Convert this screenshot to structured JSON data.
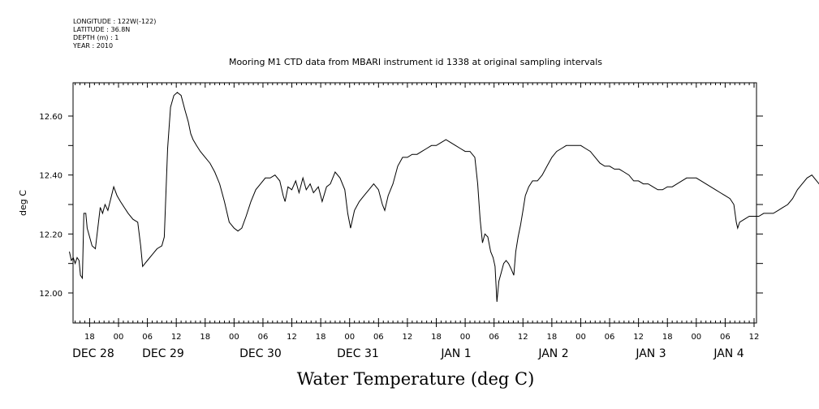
{
  "metadata": {
    "longitude": "LONGITUDE : 122W(-122)",
    "latitude": "LATITUDE : 36.8N",
    "depth": "DEPTH (m) : 1",
    "year": "YEAR : 2010"
  },
  "chart_data": {
    "type": "line",
    "title": "Mooring M1 CTD data from MBARI instrument id 1338 at original sampling intervals",
    "xlabel": "Water Temperature (deg C)",
    "ylabel": "deg C",
    "ylim": [
      11.9,
      12.71
    ],
    "xlim_hours": [
      -10.2,
      126.8
    ],
    "x_units": "hours since Dec 28 00:00, 2010-2011",
    "y_ticks": [
      {
        "value": 12.0,
        "label": "12.00"
      },
      {
        "value": 12.2,
        "label": "12.20"
      },
      {
        "value": 12.4,
        "label": "12.40"
      },
      {
        "value": 12.6,
        "label": "12.60"
      }
    ],
    "y_minor_ticks": [
      12.1,
      12.3,
      12.5
    ],
    "x_hour_ticks": [
      {
        "hour": -6,
        "label": "18"
      },
      {
        "hour": 0,
        "label": "00"
      },
      {
        "hour": 6,
        "label": "06"
      },
      {
        "hour": 12,
        "label": "12"
      },
      {
        "hour": 18,
        "label": "18"
      },
      {
        "hour": 24,
        "label": "00"
      },
      {
        "hour": 30,
        "label": "06"
      },
      {
        "hour": 36,
        "label": "12"
      },
      {
        "hour": 42,
        "label": "18"
      },
      {
        "hour": 48,
        "label": "00"
      },
      {
        "hour": 54,
        "label": "06"
      },
      {
        "hour": 60,
        "label": "12"
      },
      {
        "hour": 66,
        "label": "18"
      },
      {
        "hour": 72,
        "label": "00"
      },
      {
        "hour": 78,
        "label": "06"
      },
      {
        "hour": 84,
        "label": "12"
      },
      {
        "hour": 90,
        "label": "18"
      },
      {
        "hour": 96,
        "label": "00"
      },
      {
        "hour": 102,
        "label": "06"
      },
      {
        "hour": 108,
        "label": "12"
      },
      {
        "hour": 114,
        "label": "18"
      },
      {
        "hour": 120,
        "label": "00"
      },
      {
        "hour": 126,
        "label": "06"
      },
      {
        "hour": 132,
        "label": "12"
      }
    ],
    "x_day_labels": [
      {
        "hour": -7,
        "label": "DEC 28"
      },
      {
        "hour": 7,
        "label": "DEC 29"
      },
      {
        "hour": 31,
        "label": "DEC 30"
      },
      {
        "hour": 55,
        "label": "DEC 31"
      },
      {
        "hour": 79,
        "label": "JAN  1"
      },
      {
        "hour": 103,
        "label": "JAN  2"
      },
      {
        "hour": 127,
        "label": "JAN  3"
      },
      {
        "hour": 151,
        "label": "JAN  4"
      }
    ],
    "series": [
      {
        "values": [
          [
            -10.2,
            12.14
          ],
          [
            -9.8,
            12.11
          ],
          [
            -9.4,
            12.12
          ],
          [
            -9.0,
            12.1
          ],
          [
            -8.6,
            12.12
          ],
          [
            -8.2,
            12.11
          ],
          [
            -7.9,
            12.06
          ],
          [
            -7.5,
            12.05
          ],
          [
            -7.2,
            12.27
          ],
          [
            -6.8,
            12.27
          ],
          [
            -6.5,
            12.22
          ],
          [
            -6.0,
            12.19
          ],
          [
            -5.5,
            12.16
          ],
          [
            -4.8,
            12.15
          ],
          [
            -4.3,
            12.22
          ],
          [
            -3.8,
            12.29
          ],
          [
            -3.3,
            12.27
          ],
          [
            -2.8,
            12.3
          ],
          [
            -2.2,
            12.28
          ],
          [
            -1.6,
            12.32
          ],
          [
            -1.0,
            12.36
          ],
          [
            -0.3,
            12.33
          ],
          [
            0.4,
            12.31
          ],
          [
            1.2,
            12.29
          ],
          [
            2.0,
            12.27
          ],
          [
            3.0,
            12.25
          ],
          [
            4.0,
            12.24
          ],
          [
            4.6,
            12.16
          ],
          [
            5.0,
            12.09
          ],
          [
            5.5,
            12.1
          ],
          [
            6.0,
            12.11
          ],
          [
            7.0,
            12.13
          ],
          [
            8.0,
            12.15
          ],
          [
            9.0,
            12.16
          ],
          [
            9.5,
            12.19
          ],
          [
            10.2,
            12.49
          ],
          [
            10.8,
            12.63
          ],
          [
            11.5,
            12.67
          ],
          [
            12.2,
            12.68
          ],
          [
            13.0,
            12.67
          ],
          [
            13.8,
            12.62
          ],
          [
            14.5,
            12.58
          ],
          [
            15.0,
            12.54
          ],
          [
            15.5,
            12.52
          ],
          [
            16.2,
            12.5
          ],
          [
            17.0,
            12.48
          ],
          [
            18.0,
            12.46
          ],
          [
            19.0,
            12.44
          ],
          [
            20.0,
            12.41
          ],
          [
            21.0,
            12.37
          ],
          [
            22.0,
            12.31
          ],
          [
            23.0,
            12.24
          ],
          [
            24.0,
            12.22
          ],
          [
            24.8,
            12.21
          ],
          [
            25.6,
            12.22
          ],
          [
            26.5,
            12.26
          ],
          [
            27.5,
            12.31
          ],
          [
            28.5,
            12.35
          ],
          [
            29.5,
            12.37
          ],
          [
            30.5,
            12.39
          ],
          [
            31.5,
            12.39
          ],
          [
            32.5,
            12.4
          ],
          [
            33.5,
            12.38
          ],
          [
            34.2,
            12.33
          ],
          [
            34.6,
            12.31
          ],
          [
            35.2,
            12.36
          ],
          [
            36.0,
            12.35
          ],
          [
            36.8,
            12.38
          ],
          [
            37.5,
            12.34
          ],
          [
            38.3,
            12.39
          ],
          [
            39.0,
            12.35
          ],
          [
            39.8,
            12.37
          ],
          [
            40.5,
            12.34
          ],
          [
            41.5,
            12.36
          ],
          [
            42.3,
            12.31
          ],
          [
            43.2,
            12.36
          ],
          [
            44.0,
            12.37
          ],
          [
            45.0,
            12.41
          ],
          [
            46.0,
            12.39
          ],
          [
            47.0,
            12.35
          ],
          [
            47.6,
            12.27
          ],
          [
            48.2,
            12.22
          ],
          [
            49.0,
            12.28
          ],
          [
            50.0,
            12.31
          ],
          [
            51.0,
            12.33
          ],
          [
            52.0,
            12.35
          ],
          [
            53.0,
            12.37
          ],
          [
            54.0,
            12.35
          ],
          [
            54.8,
            12.3
          ],
          [
            55.3,
            12.28
          ],
          [
            56.0,
            12.33
          ],
          [
            57.0,
            12.37
          ],
          [
            58.0,
            12.43
          ],
          [
            59.0,
            12.46
          ],
          [
            60.0,
            12.46
          ],
          [
            61.0,
            12.47
          ],
          [
            62.0,
            12.47
          ],
          [
            63.0,
            12.48
          ],
          [
            64.0,
            12.49
          ],
          [
            65.0,
            12.5
          ],
          [
            66.0,
            12.5
          ],
          [
            67.0,
            12.51
          ],
          [
            68.0,
            12.52
          ],
          [
            69.0,
            12.51
          ],
          [
            70.0,
            12.5
          ],
          [
            71.0,
            12.49
          ],
          [
            72.0,
            12.48
          ],
          [
            73.0,
            12.48
          ],
          [
            74.0,
            12.46
          ],
          [
            74.6,
            12.37
          ],
          [
            75.1,
            12.25
          ],
          [
            75.6,
            12.17
          ],
          [
            76.1,
            12.2
          ],
          [
            76.7,
            12.19
          ],
          [
            77.3,
            12.14
          ],
          [
            77.8,
            12.12
          ],
          [
            78.2,
            12.09
          ],
          [
            78.6,
            11.97
          ],
          [
            79.0,
            12.04
          ],
          [
            79.5,
            12.07
          ],
          [
            80.0,
            12.1
          ],
          [
            80.5,
            12.11
          ],
          [
            81.0,
            12.1
          ],
          [
            81.6,
            12.08
          ],
          [
            82.1,
            12.06
          ],
          [
            82.5,
            12.14
          ],
          [
            83.0,
            12.19
          ],
          [
            83.5,
            12.23
          ],
          [
            84.0,
            12.28
          ],
          [
            84.5,
            12.33
          ],
          [
            85.2,
            12.36
          ],
          [
            86.0,
            12.38
          ],
          [
            87.0,
            12.38
          ],
          [
            88.0,
            12.4
          ],
          [
            89.0,
            12.43
          ],
          [
            90.0,
            12.46
          ],
          [
            91.0,
            12.48
          ],
          [
            92.0,
            12.49
          ],
          [
            93.0,
            12.5
          ],
          [
            94.0,
            12.5
          ],
          [
            95.0,
            12.5
          ],
          [
            96.0,
            12.5
          ],
          [
            97.0,
            12.49
          ],
          [
            98.0,
            12.48
          ],
          [
            99.0,
            12.46
          ],
          [
            100.0,
            12.44
          ],
          [
            101.0,
            12.43
          ],
          [
            102.0,
            12.43
          ],
          [
            103.0,
            12.42
          ],
          [
            104.0,
            12.42
          ],
          [
            105.0,
            12.41
          ],
          [
            106.0,
            12.4
          ],
          [
            107.0,
            12.38
          ],
          [
            108.0,
            12.38
          ],
          [
            109.0,
            12.37
          ],
          [
            110.0,
            12.37
          ],
          [
            111.0,
            12.36
          ],
          [
            112.0,
            12.35
          ],
          [
            113.0,
            12.35
          ],
          [
            114.0,
            12.36
          ],
          [
            115.0,
            12.36
          ],
          [
            116.0,
            12.37
          ],
          [
            117.0,
            12.38
          ],
          [
            118.0,
            12.39
          ],
          [
            119.0,
            12.39
          ],
          [
            120.0,
            12.39
          ],
          [
            121.0,
            12.38
          ],
          [
            122.0,
            12.37
          ],
          [
            123.0,
            12.36
          ],
          [
            124.0,
            12.35
          ],
          [
            125.0,
            12.34
          ],
          [
            126.0,
            12.33
          ],
          [
            127.0,
            12.32
          ],
          [
            127.8,
            12.3
          ],
          [
            128.3,
            12.24
          ],
          [
            128.6,
            12.22
          ],
          [
            129.0,
            12.24
          ],
          [
            130.0,
            12.25
          ],
          [
            131.0,
            12.26
          ],
          [
            132.0,
            12.26
          ],
          [
            133.0,
            12.26
          ],
          [
            134.0,
            12.27
          ],
          [
            135.0,
            12.27
          ],
          [
            136.0,
            12.27
          ],
          [
            137.0,
            12.28
          ],
          [
            138.0,
            12.29
          ],
          [
            139.0,
            12.3
          ],
          [
            140.0,
            12.32
          ],
          [
            141.0,
            12.35
          ],
          [
            142.0,
            12.37
          ],
          [
            143.0,
            12.39
          ],
          [
            144.0,
            12.4
          ],
          [
            145.0,
            12.38
          ],
          [
            146.0,
            12.36
          ],
          [
            147.0,
            12.34
          ],
          [
            148.0,
            12.32
          ],
          [
            149.0,
            12.3
          ],
          [
            150.0,
            12.29
          ],
          [
            151.0,
            12.28
          ],
          [
            152.0,
            12.28
          ],
          [
            153.0,
            12.28
          ],
          [
            153.5,
            12.26
          ],
          [
            154.0,
            12.29
          ],
          [
            155.0,
            12.3
          ],
          [
            156.0,
            12.29
          ],
          [
            157.0,
            12.28
          ],
          [
            158.0,
            12.27
          ],
          [
            158.7,
            12.28
          ]
        ]
      }
    ]
  }
}
